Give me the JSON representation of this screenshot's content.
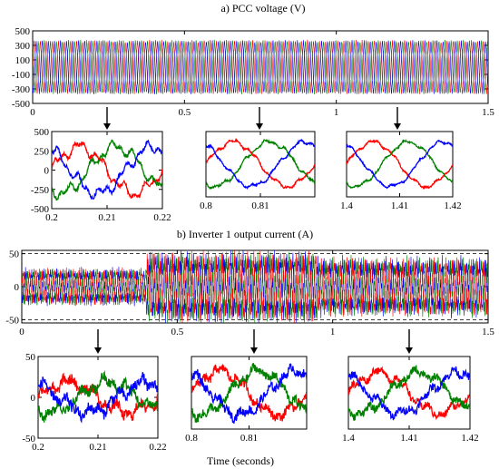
{
  "chart_data": [
    {
      "id": "a",
      "type": "line",
      "title": "a) PCC voltage (V)",
      "xlim": [
        0,
        1.5
      ],
      "ylim": [
        -500,
        500
      ],
      "xticks": [
        0,
        0.5,
        1,
        1.5
      ],
      "xtick_labels": [
        "0",
        "0.5",
        "1",
        "1.5"
      ],
      "yticks": [
        500,
        300,
        100,
        -100,
        -300,
        -500
      ],
      "ytick_labels": [
        "500",
        "300",
        "100",
        "-100",
        "-300",
        "-500"
      ],
      "series": [
        {
          "color": "#ff0000",
          "amplitude": 330,
          "frequency_hz": 50
        },
        {
          "color": "#008000",
          "amplitude": 330,
          "frequency_hz": 50
        },
        {
          "color": "#0000ff",
          "amplitude": 330,
          "frequency_hz": 50
        }
      ],
      "zooms": [
        {
          "xlim": [
            0.2,
            0.22
          ],
          "ylim": [
            -500,
            500
          ],
          "xticks": [
            0.2,
            0.21,
            0.22
          ],
          "xtick_labels": [
            "0.2",
            "0.21",
            "0.22"
          ],
          "yticks": [
            500,
            250,
            0,
            -250,
            -500
          ],
          "ytick_labels": [
            "500",
            "250",
            "0",
            "-250",
            "-500"
          ],
          "amplitude": 300,
          "distortion": 0.3,
          "noise": 0.08
        },
        {
          "xlim": [
            0.8,
            0.82
          ],
          "ylim": [
            -500,
            500
          ],
          "xticks": [
            0.8,
            0.81
          ],
          "xtick_labels": [
            "0.8",
            "0.81"
          ],
          "yticks": [],
          "ytick_labels": [],
          "amplitude": 340,
          "distortion": 0.12,
          "noise": 0.04
        },
        {
          "xlim": [
            1.4,
            1.42
          ],
          "ylim": [
            -500,
            500
          ],
          "xticks": [
            1.4,
            1.41,
            1.42
          ],
          "xtick_labels": [
            "1.4",
            "1.41",
            "1.42"
          ],
          "yticks": [],
          "ytick_labels": [],
          "amplitude": 340,
          "distortion": 0.1,
          "noise": 0.035
        }
      ]
    },
    {
      "id": "b",
      "type": "line",
      "title": "b) Inverter 1 output current (A)",
      "xlabel": "Time (seconds)",
      "xlim": [
        0,
        1.5
      ],
      "ylim": [
        -55,
        55
      ],
      "xticks": [
        0,
        0.5,
        1,
        1.5
      ],
      "xtick_labels": [
        "0",
        "0.5",
        "1",
        "1.5"
      ],
      "yticks": [
        50,
        0,
        -50
      ],
      "ytick_labels": [
        "50",
        "0",
        "-50"
      ],
      "segments": [
        {
          "t_start": 0,
          "t_end": 0.4,
          "amplitude": 20
        },
        {
          "t_start": 0.4,
          "t_end": 0.95,
          "amplitude": 38
        },
        {
          "t_start": 0.95,
          "t_end": 1.5,
          "amplitude": 32
        }
      ],
      "series": [
        {
          "color": "#ff0000"
        },
        {
          "color": "#008000"
        },
        {
          "color": "#0000ff"
        }
      ],
      "zooms": [
        {
          "xlim": [
            0.2,
            0.22
          ],
          "ylim": [
            -50,
            50
          ],
          "xticks": [
            0.2,
            0.21,
            0.22
          ],
          "xtick_labels": [
            "0.2",
            "0.21",
            "0.22"
          ],
          "yticks": [
            50,
            0,
            -50
          ],
          "ytick_labels": [
            "50",
            "0",
            "-50"
          ],
          "amplitude": 18,
          "distortion": 0.5,
          "noise": 0.35
        },
        {
          "xlim": [
            0.8,
            0.82
          ],
          "ylim": [
            -50,
            50
          ],
          "xticks": [
            0.8,
            0.81
          ],
          "xtick_labels": [
            "0.8",
            "0.81"
          ],
          "yticks": [],
          "ytick_labels": [],
          "amplitude": 30,
          "distortion": 0.25,
          "noise": 0.2
        },
        {
          "xlim": [
            1.4,
            1.42
          ],
          "ylim": [
            -50,
            50
          ],
          "xticks": [
            1.4,
            1.41,
            1.42
          ],
          "xtick_labels": [
            "1.4",
            "1.41",
            "1.42"
          ],
          "yticks": [],
          "ytick_labels": [],
          "amplitude": 28,
          "distortion": 0.25,
          "noise": 0.18
        }
      ]
    }
  ]
}
